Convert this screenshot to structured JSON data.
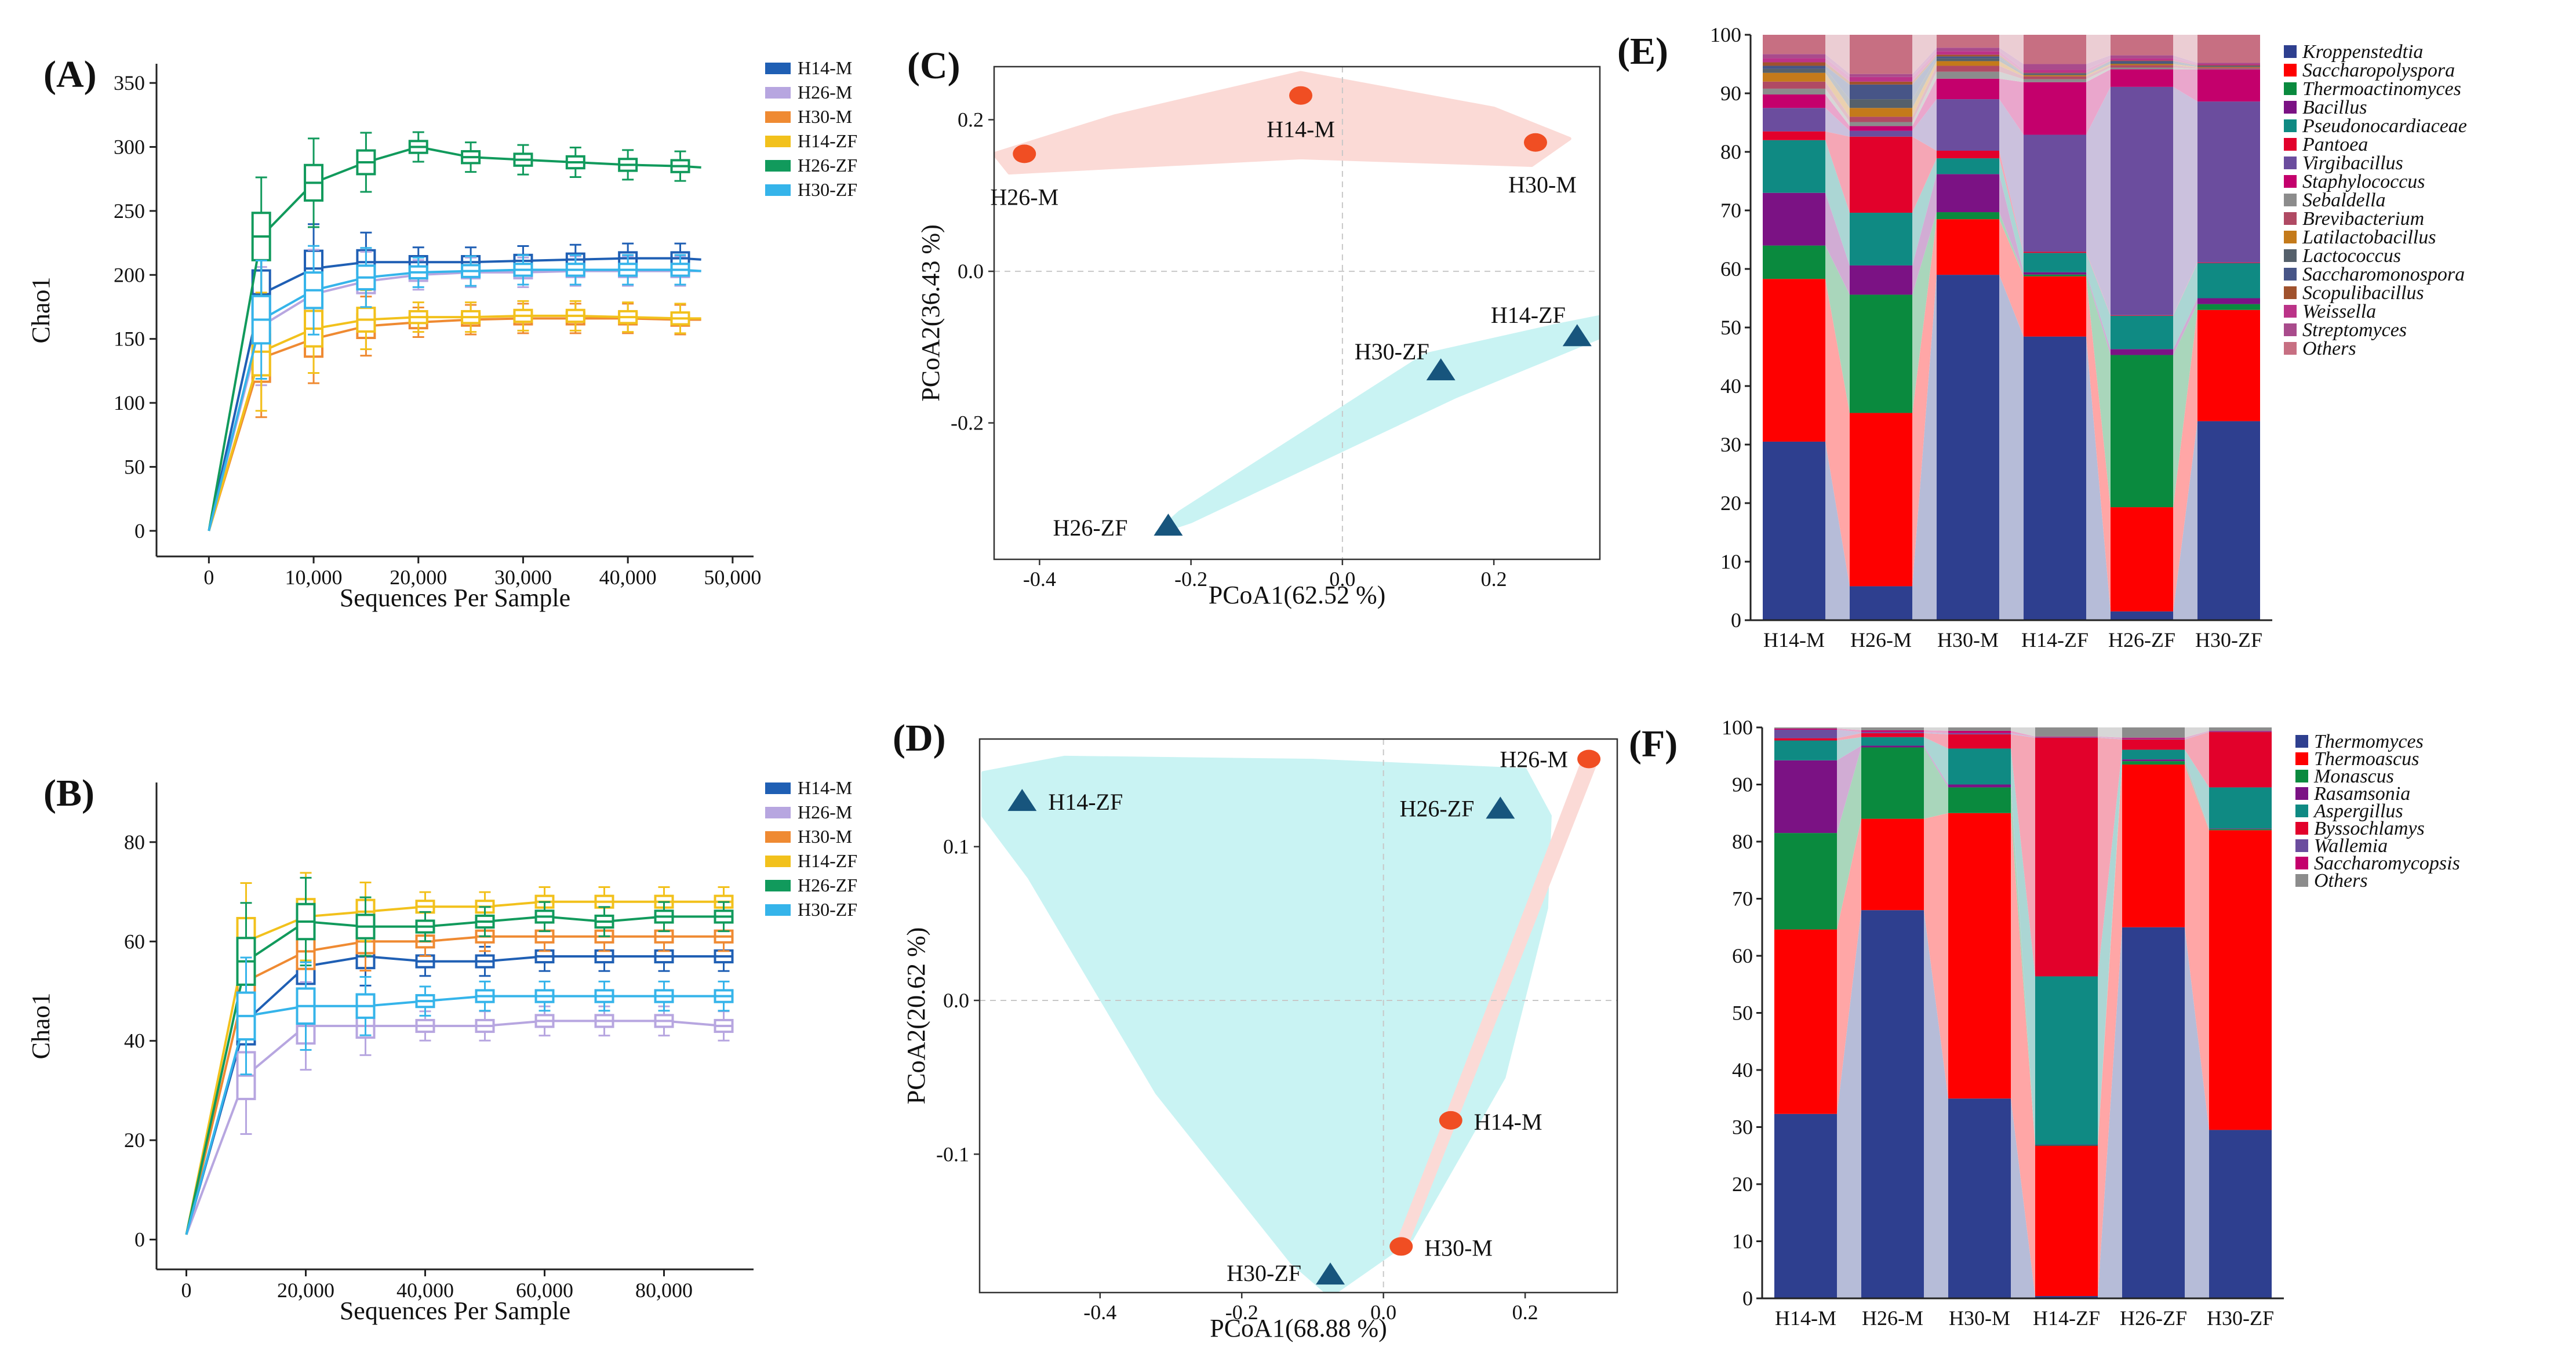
{
  "chart_data": [
    {
      "id": "A",
      "panel_label": "(A)",
      "type": "line",
      "subtype": "rarefaction-boxplot",
      "xlabel": "Sequences Per Sample",
      "ylabel": "Chao1",
      "xlim": [
        -5000,
        52000
      ],
      "ylim": [
        -20,
        365
      ],
      "xticks": [
        0,
        10000,
        20000,
        30000,
        40000,
        50000
      ],
      "xtick_labels": [
        "0",
        "10,000",
        "20,000",
        "30,000",
        "40,000",
        "50,000"
      ],
      "yticks": [
        0,
        50,
        100,
        150,
        200,
        250,
        300,
        350
      ],
      "x": [
        0,
        5000,
        10000,
        15000,
        20000,
        25000,
        30000,
        35000,
        40000,
        45000,
        47000
      ],
      "box_x": [
        5000,
        10000,
        15000,
        20000,
        25000,
        30000,
        35000,
        40000,
        45000
      ],
      "series": [
        {
          "name": "H14-M",
          "color": "#1f5fb4",
          "values": [
            0,
            185,
            205,
            210,
            210,
            210,
            211,
            212,
            213,
            213,
            212
          ]
        },
        {
          "name": "H26-M",
          "color": "#b7a6e0",
          "values": [
            0,
            160,
            185,
            195,
            200,
            202,
            202,
            203,
            203,
            203,
            203
          ]
        },
        {
          "name": "H30-M",
          "color": "#ef8a32",
          "values": [
            0,
            135,
            150,
            160,
            163,
            165,
            166,
            166,
            166,
            165,
            165
          ]
        },
        {
          "name": "H14-ZF",
          "color": "#f2c11c",
          "values": [
            0,
            140,
            158,
            165,
            167,
            167,
            168,
            168,
            167,
            166,
            166
          ]
        },
        {
          "name": "H26-ZF",
          "color": "#119a5c",
          "values": [
            0,
            230,
            272,
            288,
            300,
            292,
            290,
            288,
            286,
            285,
            284
          ]
        },
        {
          "name": "H30-ZF",
          "color": "#35b4ea",
          "values": [
            0,
            165,
            188,
            198,
            202,
            203,
            204,
            204,
            204,
            204,
            203
          ]
        }
      ],
      "legend": [
        "H14-M",
        "H26-M",
        "H30-M",
        "H14-ZF",
        "H26-ZF",
        "H30-ZF"
      ]
    },
    {
      "id": "B",
      "panel_label": "(B)",
      "type": "line",
      "subtype": "rarefaction-boxplot",
      "xlabel": "Sequences Per Sample",
      "ylabel": "Chao1",
      "xlim": [
        -5000,
        95000
      ],
      "ylim": [
        -6,
        92
      ],
      "xticks": [
        0,
        20000,
        40000,
        60000,
        80000
      ],
      "xtick_labels": [
        "0",
        "20,000",
        "40,000",
        "60,000",
        "80,000"
      ],
      "yticks": [
        0,
        20,
        40,
        60,
        80
      ],
      "x": [
        0,
        10000,
        20000,
        30000,
        40000,
        50000,
        60000,
        70000,
        80000,
        90000
      ],
      "box_x": [
        10000,
        20000,
        30000,
        40000,
        50000,
        60000,
        70000,
        80000,
        90000
      ],
      "series": [
        {
          "name": "H14-M",
          "color": "#1f5fb4",
          "values": [
            1,
            44,
            55,
            57,
            56,
            56,
            57,
            57,
            57,
            57
          ]
        },
        {
          "name": "H26-M",
          "color": "#b7a6e0",
          "values": [
            1,
            33,
            43,
            43,
            43,
            43,
            44,
            44,
            44,
            43
          ]
        },
        {
          "name": "H30-M",
          "color": "#ef8a32",
          "values": [
            1,
            52,
            58,
            60,
            60,
            61,
            61,
            61,
            61,
            61
          ]
        },
        {
          "name": "H14-ZF",
          "color": "#f2c11c",
          "values": [
            1,
            60,
            65,
            66,
            67,
            67,
            68,
            68,
            68,
            68
          ]
        },
        {
          "name": "H26-ZF",
          "color": "#119a5c",
          "values": [
            1,
            56,
            64,
            63,
            63,
            64,
            65,
            64,
            65,
            65
          ]
        },
        {
          "name": "H30-ZF",
          "color": "#35b4ea",
          "values": [
            1,
            45,
            47,
            47,
            48,
            49,
            49,
            49,
            49,
            49
          ]
        }
      ],
      "legend": [
        "H14-M",
        "H26-M",
        "H30-M",
        "H14-ZF",
        "H26-ZF",
        "H30-ZF"
      ]
    },
    {
      "id": "C",
      "panel_label": "(C)",
      "type": "scatter",
      "subtype": "PCoA",
      "xlabel": "PCoA1(62.52 %)",
      "ylabel": "PCoA2(36.43 %)",
      "xlim": [
        -0.46,
        0.34
      ],
      "ylim": [
        -0.38,
        0.27
      ],
      "xticks": [
        -0.4,
        -0.2,
        0.0,
        0.2
      ],
      "xtick_labels": [
        "-0.4",
        "-0.2",
        "0.0",
        "0.2"
      ],
      "yticks": [
        -0.2,
        0.0,
        0.2
      ],
      "ytick_labels": [
        "-0.2",
        "0.0",
        "0.2"
      ],
      "points": [
        {
          "label": "H26-M",
          "x": -0.42,
          "y": 0.155,
          "group": "M"
        },
        {
          "label": "H14-M",
          "x": -0.055,
          "y": 0.232,
          "group": "M"
        },
        {
          "label": "H30-M",
          "x": 0.255,
          "y": 0.17,
          "group": "M"
        },
        {
          "label": "H14-ZF",
          "x": 0.31,
          "y": -0.085,
          "group": "ZF"
        },
        {
          "label": "H30-ZF",
          "x": 0.13,
          "y": -0.13,
          "group": "ZF"
        },
        {
          "label": "H26-ZF",
          "x": -0.23,
          "y": -0.335,
          "group": "ZF"
        }
      ],
      "groups": [
        {
          "name": "M",
          "marker": "circle",
          "color": "#f04e23",
          "hull": "#fbdad6"
        },
        {
          "name": "ZF",
          "marker": "triangle",
          "color": "#17557d",
          "hull": "#c9f3f3"
        }
      ]
    },
    {
      "id": "D",
      "panel_label": "(D)",
      "type": "scatter",
      "subtype": "PCoA",
      "xlabel": "PCoA1(68.88 %)",
      "ylabel": "PCoA2(20.62 %)",
      "xlim": [
        -0.57,
        0.33
      ],
      "ylim": [
        -0.19,
        0.17
      ],
      "xticks": [
        -0.4,
        -0.2,
        0.0,
        0.2
      ],
      "xtick_labels": [
        "-0.4",
        "-0.2",
        "0.0",
        "0.2"
      ],
      "yticks": [
        -0.1,
        0.0,
        0.1
      ],
      "ytick_labels": [
        "-0.1",
        "0.0",
        "0.1"
      ],
      "points": [
        {
          "label": "H14-ZF",
          "x": -0.51,
          "y": 0.13,
          "group": "ZF"
        },
        {
          "label": "H26-ZF",
          "x": 0.165,
          "y": 0.125,
          "group": "ZF"
        },
        {
          "label": "H30-ZF",
          "x": -0.075,
          "y": -0.178,
          "group": "ZF"
        },
        {
          "label": "H26-M",
          "x": 0.29,
          "y": 0.157,
          "group": "M"
        },
        {
          "label": "H14-M",
          "x": 0.095,
          "y": -0.078,
          "group": "M"
        },
        {
          "label": "H30-M",
          "x": 0.025,
          "y": -0.16,
          "group": "M"
        }
      ],
      "groups": [
        {
          "name": "M",
          "marker": "circle",
          "color": "#f04e23",
          "hull": "#fbdad6"
        },
        {
          "name": "ZF",
          "marker": "triangle",
          "color": "#17557d",
          "hull": "#c9f3f3"
        }
      ]
    },
    {
      "id": "E",
      "panel_label": "(E)",
      "type": "bar",
      "subtype": "stacked-percent",
      "ylim": [
        0,
        100
      ],
      "yticks": [
        0,
        10,
        20,
        30,
        40,
        50,
        60,
        70,
        80,
        90,
        100
      ],
      "categories": [
        "H14-M",
        "H26-M",
        "H30-M",
        "H14-ZF",
        "H26-ZF",
        "H30-ZF"
      ],
      "series": [
        {
          "name": "Kroppenstedtia",
          "color": "#2e3f8f",
          "values": [
            30.5,
            5.8,
            59,
            48.5,
            1.5,
            34
          ]
        },
        {
          "name": "Saccharopolyspora",
          "color": "#fe0000",
          "values": [
            27.8,
            29.6,
            9.5,
            10.3,
            17.8,
            19
          ]
        },
        {
          "name": "Thermoactinomyces",
          "color": "#0a8a3e",
          "values": [
            5.7,
            20.2,
            1.2,
            0.3,
            26,
            1
          ]
        },
        {
          "name": "Bacillus",
          "color": "#7b1284",
          "values": [
            9,
            5,
            6.5,
            0.4,
            1,
            1
          ]
        },
        {
          "name": "Pseudonocardiaceae",
          "color": "#0f8a83",
          "values": [
            9,
            9,
            2.7,
            3.3,
            5.7,
            6
          ]
        },
        {
          "name": "Pantoea",
          "color": "#e2012b",
          "values": [
            1.5,
            13,
            1.3,
            0.2,
            0.1,
            0.1
          ]
        },
        {
          "name": "Virgibacillus",
          "color": "#6b4d9e",
          "values": [
            4,
            1,
            8.8,
            20,
            39,
            27.5
          ]
        },
        {
          "name": "Staphylococcus",
          "color": "#c4006c",
          "values": [
            2.3,
            0.8,
            3.5,
            9,
            3,
            5.5
          ]
        },
        {
          "name": "Sebaldella",
          "color": "#8c8c8c",
          "values": [
            1,
            0.7,
            1.2,
            0.5,
            0.3,
            0.1
          ]
        },
        {
          "name": "Brevibacterium",
          "color": "#b04a64",
          "values": [
            1.2,
            0.9,
            1,
            0.5,
            0.4,
            0.2
          ]
        },
        {
          "name": "Latilactobacillus",
          "color": "#c47a1a",
          "values": [
            1.5,
            1.5,
            0.8,
            0.2,
            0.2,
            0.1
          ]
        },
        {
          "name": "Lactococcus",
          "color": "#55606b",
          "values": [
            0.7,
            1.5,
            0.5,
            0.2,
            0.2,
            0.1
          ]
        },
        {
          "name": "Saccharomonospora",
          "color": "#475587",
          "values": [
            0.5,
            2.5,
            0.3,
            0.1,
            0.3,
            0.1
          ]
        },
        {
          "name": "Scopulibacillus",
          "color": "#a0522d",
          "values": [
            0.6,
            0.5,
            0.3,
            0.1,
            0.1,
            0.1
          ]
        },
        {
          "name": "Weissella",
          "color": "#bb3388",
          "values": [
            0.7,
            0.8,
            0.6,
            0.5,
            0.4,
            0.2
          ]
        },
        {
          "name": "Streptomyces",
          "color": "#a94b8c",
          "values": [
            0.7,
            0.5,
            0.6,
            1,
            0.5,
            0.2
          ]
        },
        {
          "name": "Others",
          "color": "#c76f82",
          "values": [
            3.3,
            6.7,
            2.2,
            5,
            3.5,
            4.8
          ]
        }
      ]
    },
    {
      "id": "F",
      "panel_label": "(F)",
      "type": "bar",
      "subtype": "stacked-percent",
      "ylim": [
        0,
        100
      ],
      "yticks": [
        0,
        10,
        20,
        30,
        40,
        50,
        60,
        70,
        80,
        90,
        100
      ],
      "categories": [
        "H14-M",
        "H26-M",
        "H30-M",
        "H14-ZF",
        "H26-ZF",
        "H30-ZF"
      ],
      "series": [
        {
          "name": "Thermomyces",
          "color": "#2e3f8f",
          "values": [
            32.5,
            68,
            35,
            0.4,
            65,
            29.5
          ]
        },
        {
          "name": "Thermoascus",
          "color": "#fe0000",
          "values": [
            32.5,
            16,
            50,
            26.3,
            28.5,
            52.5
          ]
        },
        {
          "name": "Monascus",
          "color": "#0a8a3e",
          "values": [
            17,
            12.5,
            4.5,
            0.1,
            0.6,
            0.2
          ]
        },
        {
          "name": "Rasamsonia",
          "color": "#7b1284",
          "values": [
            12.8,
            0.3,
            0.5,
            0.1,
            0.3,
            0.1
          ]
        },
        {
          "name": "Aspergillus",
          "color": "#0f8a83",
          "values": [
            3.5,
            1.5,
            6.3,
            29.5,
            1.7,
            7.2
          ]
        },
        {
          "name": "Byssochlamys",
          "color": "#e2012b",
          "values": [
            0.4,
            0.7,
            2.5,
            41.8,
            1.8,
            9.7
          ]
        },
        {
          "name": "Wallemia",
          "color": "#6b4d9e",
          "values": [
            1.5,
            0.2,
            0.2,
            0.1,
            0.1,
            0.1
          ]
        },
        {
          "name": "Saccharomycopsis",
          "color": "#c4006c",
          "values": [
            0.2,
            0.3,
            0.4,
            0.1,
            0.2,
            0.1
          ]
        },
        {
          "name": "Others",
          "color": "#8c8c8c",
          "values": [
            0.2,
            0.5,
            0.6,
            1.6,
            1.8,
            0.6
          ]
        }
      ]
    }
  ]
}
